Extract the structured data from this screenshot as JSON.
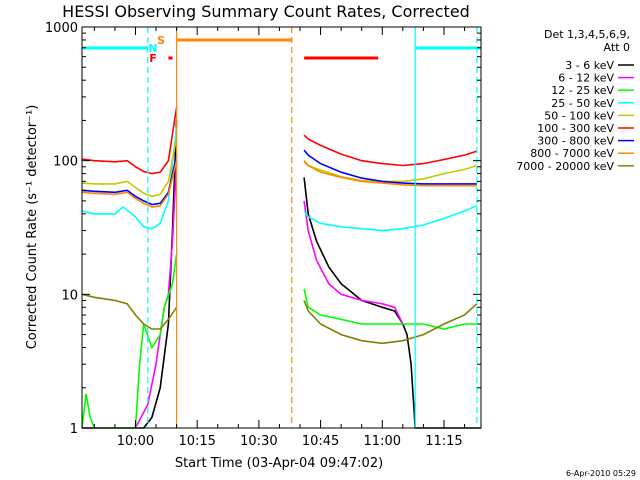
{
  "chart_data": {
    "type": "line",
    "title": "HESSI Observing Summary Count Rates, Corrected",
    "xlabel": "Start Time (03-Apr-04 09:47:02)",
    "ylabel": "Corrected Count Rate (s⁻¹ detector⁻¹)",
    "xlim": [
      "09:47",
      "11:24"
    ],
    "ylim": [
      1,
      1000
    ],
    "yscale": "log",
    "x_ticks": [
      "10:00",
      "10:15",
      "10:30",
      "10:45",
      "11:00",
      "11:15"
    ],
    "y_ticks": [
      "1",
      "10",
      "100",
      "1000"
    ],
    "legend_title": [
      "Det 1,3,4,5,6,9,",
      "Att 0"
    ],
    "legend_position": "right",
    "series": [
      {
        "name": "3 - 6 keV",
        "color": "#000000",
        "segments": [
          {
            "t": [
              "09:47",
              "09:57",
              "10:00",
              "10:02",
              "10:04",
              "10:06",
              "10:08",
              "10:09",
              "10:10"
            ],
            "y": [
              1,
              1,
              1,
              1,
              1.2,
              2,
              6,
              30,
              200
            ]
          },
          {
            "t": [
              "10:41",
              "10:42",
              "10:44",
              "10:47",
              "10:50",
              "10:55",
              "11:00",
              "11:03",
              "11:05",
              "11:06",
              "11:07",
              "11:08",
              "11:09",
              "11:20",
              "11:24"
            ],
            "y": [
              75,
              40,
              25,
              16,
              12,
              9,
              8,
              7.5,
              6,
              5,
              3,
              1,
              1,
              1,
              1
            ]
          }
        ]
      },
      {
        "name": "6 - 12 keV",
        "color": "#ff00ff",
        "segments": [
          {
            "t": [
              "09:47",
              "09:55",
              "10:00",
              "10:03",
              "10:05",
              "10:06",
              "10:07",
              "10:08",
              "10:09",
              "10:10"
            ],
            "y": [
              1,
              1,
              1,
              1.5,
              3,
              5,
              8,
              10,
              25,
              100
            ]
          },
          {
            "t": [
              "10:41",
              "10:42",
              "10:44",
              "10:47",
              "10:50",
              "10:55",
              "11:00",
              "11:03",
              "11:05"
            ],
            "y": [
              50,
              30,
              18,
              12,
              10,
              9,
              8.5,
              8,
              6
            ]
          }
        ]
      },
      {
        "name": "12 - 25 keV",
        "color": "#00ff00",
        "segments": [
          {
            "t": [
              "09:47",
              "09:48",
              "09:49",
              "09:50",
              "09:55",
              "10:00",
              "10:01",
              "10:02",
              "10:04",
              "10:06",
              "10:07",
              "10:09",
              "10:10"
            ],
            "y": [
              1,
              1.8,
              1.2,
              1,
              1,
              1,
              3,
              6,
              4,
              5,
              8,
              12,
              20
            ]
          },
          {
            "t": [
              "10:41",
              "10:42",
              "10:45",
              "10:50",
              "10:55",
              "11:00",
              "11:05",
              "11:10",
              "11:15",
              "11:20",
              "11:23"
            ],
            "y": [
              11,
              8,
              7,
              6.5,
              6,
              6,
              6,
              6,
              5.5,
              6,
              6
            ]
          }
        ]
      },
      {
        "name": "25 - 50 keV",
        "color": "#00ffff",
        "segments": [
          {
            "t": [
              "09:47",
              "09:50",
              "09:55",
              "09:57",
              "10:00",
              "10:02",
              "10:04",
              "10:06",
              "10:08",
              "10:10"
            ],
            "y": [
              42,
              40,
              40,
              45,
              38,
              32,
              31,
              34,
              50,
              180
            ]
          },
          {
            "t": [
              "10:41",
              "10:42",
              "10:45",
              "10:50",
              "10:55",
              "11:00",
              "11:05",
              "11:10",
              "11:15",
              "11:20",
              "11:23"
            ],
            "y": [
              42,
              38,
              34,
              32,
              31,
              30,
              31,
              33,
              37,
              42,
              46
            ]
          }
        ]
      },
      {
        "name": "50 - 100 keV",
        "color": "#c8c800",
        "segments": [
          {
            "t": [
              "09:47",
              "09:50",
              "09:55",
              "09:58",
              "10:00",
              "10:02",
              "10:04",
              "10:06",
              "10:08",
              "10:10"
            ],
            "y": [
              68,
              67,
              67,
              70,
              63,
              57,
              54,
              56,
              70,
              150
            ]
          },
          {
            "t": [
              "10:41",
              "10:42",
              "10:45",
              "10:50",
              "10:55",
              "11:00",
              "11:05",
              "11:10",
              "11:15",
              "11:20",
              "11:23"
            ],
            "y": [
              98,
              92,
              85,
              76,
              71,
              70,
              70,
              73,
              80,
              86,
              92
            ]
          }
        ]
      },
      {
        "name": "100 - 300 keV",
        "color": "#ff0000",
        "segments": [
          {
            "t": [
              "09:47",
              "09:50",
              "09:55",
              "09:58",
              "10:00",
              "10:02",
              "10:04",
              "10:06",
              "10:08",
              "10:10"
            ],
            "y": [
              103,
              100,
              98,
              100,
              90,
              83,
              80,
              82,
              100,
              250
            ]
          },
          {
            "t": [
              "10:41",
              "10:42",
              "10:45",
              "10:50",
              "10:55",
              "11:00",
              "11:05",
              "11:10",
              "11:15",
              "11:20",
              "11:23"
            ],
            "y": [
              155,
              145,
              130,
              112,
              100,
              95,
              92,
              95,
              102,
              110,
              118
            ]
          }
        ]
      },
      {
        "name": "300 - 800 keV",
        "color": "#0000ff",
        "segments": [
          {
            "t": [
              "09:47",
              "09:50",
              "09:55",
              "09:58",
              "10:00",
              "10:02",
              "10:04",
              "10:06",
              "10:08",
              "10:10"
            ],
            "y": [
              60,
              59,
              58,
              60,
              54,
              50,
              47,
              48,
              58,
              110
            ]
          },
          {
            "t": [
              "10:41",
              "10:42",
              "10:45",
              "10:50",
              "10:55",
              "11:00",
              "11:05",
              "11:10",
              "11:15",
              "11:20",
              "11:23"
            ],
            "y": [
              120,
              110,
              95,
              82,
              74,
              70,
              68,
              67,
              67,
              67,
              67
            ]
          }
        ]
      },
      {
        "name": "800 - 7000 keV",
        "color": "#ff8800",
        "segments": [
          {
            "t": [
              "09:47",
              "09:50",
              "09:55",
              "09:58",
              "10:00",
              "10:02",
              "10:04",
              "10:06",
              "10:08",
              "10:10"
            ],
            "y": [
              58,
              57,
              56,
              58,
              52,
              48,
              45,
              46,
              56,
              100
            ]
          },
          {
            "t": [
              "10:41",
              "10:42",
              "10:45",
              "10:50",
              "10:55",
              "11:00",
              "11:05",
              "11:10",
              "11:15",
              "11:20",
              "11:23"
            ],
            "y": [
              100,
              92,
              82,
              75,
              70,
              68,
              66,
              65,
              65,
              65,
              65
            ]
          }
        ]
      },
      {
        "name": "7000 - 20000 keV",
        "color": "#808000",
        "segments": [
          {
            "t": [
              "09:47",
              "09:50",
              "09:55",
              "09:58",
              "10:00",
              "10:02",
              "10:04",
              "10:06",
              "10:08",
              "10:10"
            ],
            "y": [
              10,
              9.5,
              9,
              8.5,
              7,
              6,
              5.5,
              5.5,
              6.5,
              8
            ]
          },
          {
            "t": [
              "10:41",
              "10:42",
              "10:45",
              "10:50",
              "10:55",
              "11:00",
              "11:05",
              "11:10",
              "11:15",
              "11:20",
              "11:23"
            ],
            "y": [
              9,
              7.5,
              6,
              5,
              4.5,
              4.3,
              4.5,
              5,
              6,
              7,
              8.5
            ]
          }
        ]
      }
    ],
    "vertical_markers": [
      {
        "t": "10:10",
        "color": "#ff8800",
        "style": "solid"
      },
      {
        "t": "10:38",
        "color": "#ff8800",
        "style": "dashed"
      },
      {
        "t": "10:03",
        "color": "#00ffff",
        "style": "dashed"
      },
      {
        "t": "11:08",
        "color": "#00ffff",
        "style": "solid"
      },
      {
        "t": "11:23",
        "color": "#00ffff",
        "style": "dashed"
      }
    ],
    "flag_bars": [
      {
        "label": "S",
        "color": "#ff8800",
        "segments": [
          [
            "10:10",
            "10:38"
          ]
        ]
      },
      {
        "label": "N",
        "color": "#00ffff",
        "segments": [
          [
            "09:47",
            "10:03"
          ],
          [
            "11:08",
            "11:24"
          ]
        ]
      },
      {
        "label": "F",
        "color": "#ff0000",
        "segments": [
          [
            "10:08",
            "10:09"
          ],
          [
            "10:41",
            "10:59"
          ]
        ]
      }
    ]
  },
  "footer": {
    "timestamp": "6-Apr-2010 05:29"
  }
}
